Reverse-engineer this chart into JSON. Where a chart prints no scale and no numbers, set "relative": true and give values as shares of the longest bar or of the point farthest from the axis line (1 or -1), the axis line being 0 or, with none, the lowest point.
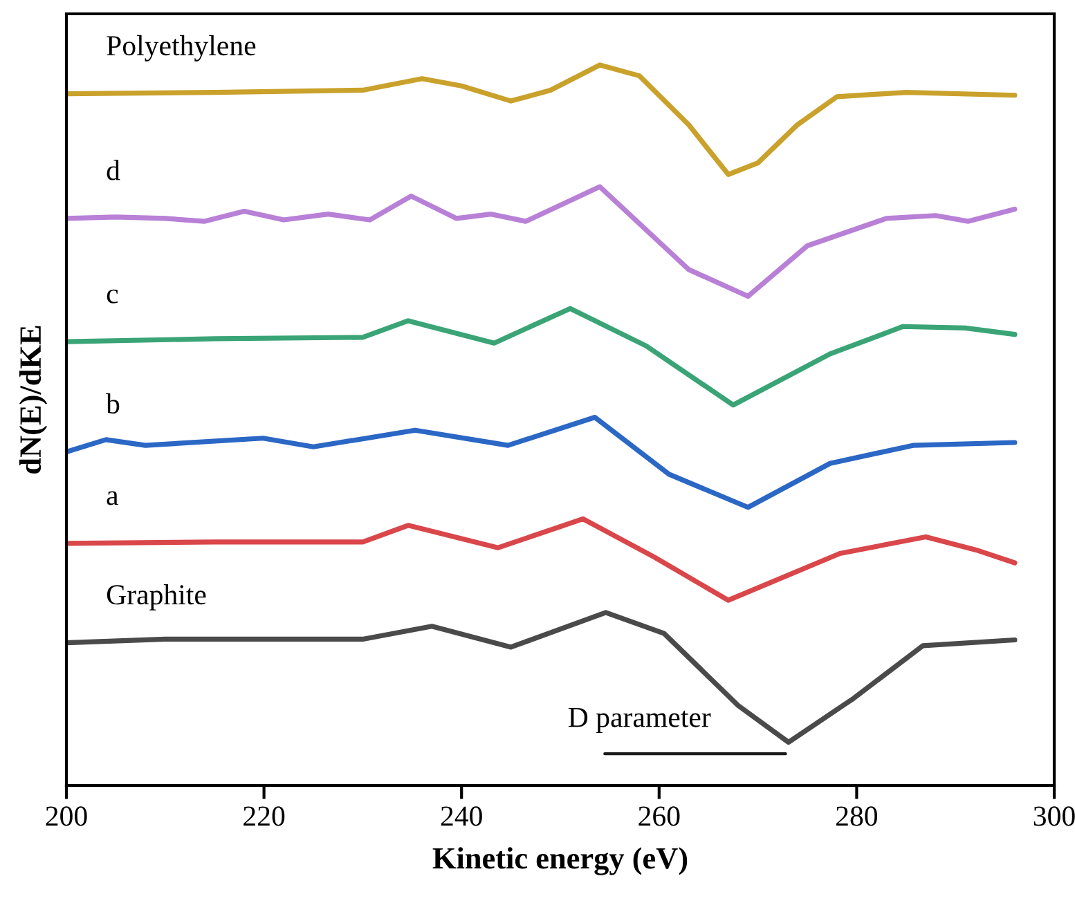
{
  "chart_data": {
    "type": "line",
    "relative": true,
    "xlabel": "Kinetic energy (eV)",
    "ylabel": "dN(E)/dKE",
    "xlim": [
      200,
      300
    ],
    "xticks": [
      200,
      220,
      240,
      260,
      280,
      300
    ],
    "tick_labels": "x",
    "grid": false,
    "legend": false,
    "marker": "none",
    "line_style": "solid",
    "annotations": [
      "D parameter"
    ],
    "series": [
      {
        "name": "Polyethylene",
        "color": "#c9a12b",
        "x": [
          200,
          215,
          230,
          236,
          240,
          245,
          249,
          254,
          258,
          263,
          267,
          270,
          274,
          278,
          285,
          296
        ],
        "values": [
          0.96,
          0.962,
          0.965,
          0.981,
          0.971,
          0.95,
          0.965,
          1.0,
          0.985,
          0.917,
          0.848,
          0.864,
          0.917,
          0.956,
          0.962,
          0.958
        ]
      },
      {
        "name": "d",
        "color": "#b880d6",
        "x": [
          200,
          205,
          210,
          214,
          218,
          222,
          226.5,
          230.7,
          234.9,
          239.5,
          243,
          246.5,
          254,
          263,
          269,
          275,
          283,
          288,
          291.3,
          296
        ],
        "values": [
          0.787,
          0.789,
          0.787,
          0.783,
          0.797,
          0.785,
          0.793,
          0.785,
          0.818,
          0.787,
          0.793,
          0.783,
          0.831,
          0.716,
          0.679,
          0.749,
          0.787,
          0.791,
          0.783,
          0.8
        ]
      },
      {
        "name": "c",
        "color": "#3aa476",
        "x": [
          200,
          215,
          230,
          234.6,
          243.3,
          251,
          258.7,
          267.5,
          277.3,
          284.7,
          291,
          296
        ],
        "values": [
          0.616,
          0.62,
          0.622,
          0.645,
          0.614,
          0.662,
          0.61,
          0.528,
          0.599,
          0.637,
          0.635,
          0.626
        ]
      },
      {
        "name": "b",
        "color": "#2b67c5",
        "x": [
          200,
          204,
          208,
          219.9,
          225,
          235.3,
          244.7,
          253.5,
          261,
          269,
          277.3,
          285.7,
          296
        ],
        "values": [
          0.463,
          0.48,
          0.472,
          0.482,
          0.47,
          0.493,
          0.472,
          0.511,
          0.432,
          0.386,
          0.447,
          0.472,
          0.476
        ]
      },
      {
        "name": "a",
        "color": "#d9474a",
        "x": [
          200,
          215,
          230,
          234.6,
          243.7,
          252.3,
          259.5,
          267,
          278.3,
          287,
          292.3,
          296
        ],
        "values": [
          0.336,
          0.338,
          0.338,
          0.361,
          0.33,
          0.37,
          0.317,
          0.257,
          0.322,
          0.345,
          0.326,
          0.309
        ]
      },
      {
        "name": "Graphite",
        "color": "#4a4a4a",
        "x": [
          200,
          210,
          230,
          237,
          245,
          254.6,
          260.5,
          268,
          273.1,
          279.7,
          286.7,
          296
        ],
        "values": [
          0.198,
          0.203,
          0.203,
          0.221,
          0.192,
          0.24,
          0.211,
          0.111,
          0.06,
          0.121,
          0.194,
          0.202
        ]
      },
      {
        "color": "#1a1a1a",
        "x": [
          254.5,
          272.8
        ],
        "values": [
          0.044,
          0.044
        ]
      }
    ]
  }
}
